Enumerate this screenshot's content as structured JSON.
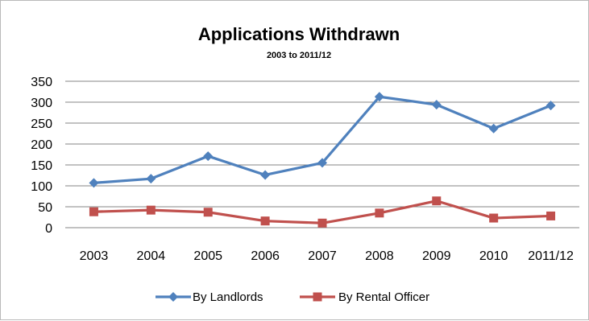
{
  "chart_data": {
    "type": "line",
    "title": "Applications Withdrawn",
    "subtitle": "2003 to 2011/12",
    "xlabel": "",
    "ylabel": "",
    "categories": [
      "2003",
      "2004",
      "2005",
      "2006",
      "2007",
      "2008",
      "2009",
      "2010",
      "2011/12"
    ],
    "ylim": [
      0,
      350
    ],
    "yticks": [
      0,
      50,
      100,
      150,
      200,
      250,
      300,
      350
    ],
    "grid": true,
    "legend_position": "bottom",
    "series": [
      {
        "name": "By Landlords",
        "color": "#4f81bd",
        "marker": "diamond",
        "values": [
          107,
          117,
          171,
          126,
          155,
          313,
          294,
          237,
          292
        ]
      },
      {
        "name": "By Rental Officer",
        "color": "#c0504d",
        "marker": "square",
        "values": [
          38,
          42,
          37,
          16,
          11,
          35,
          64,
          23,
          28
        ]
      }
    ]
  }
}
